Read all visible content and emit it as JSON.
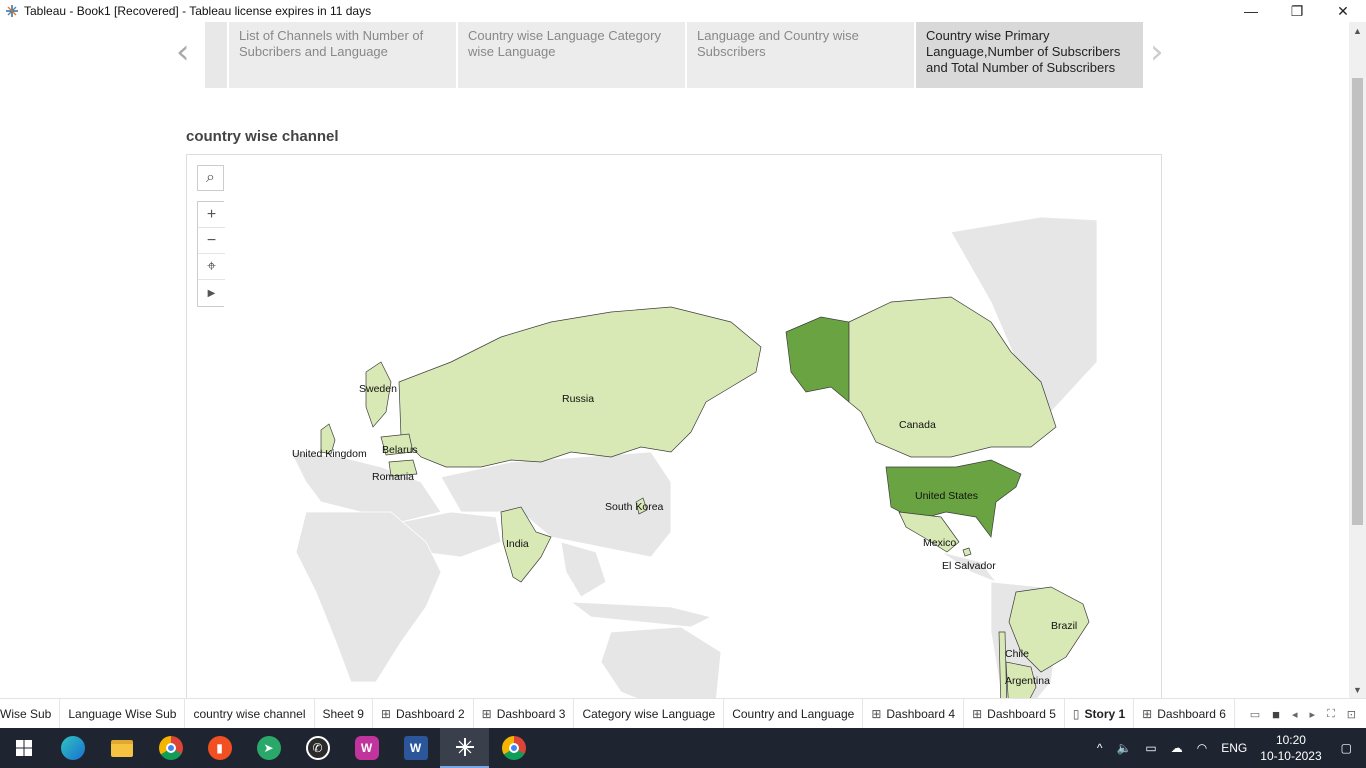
{
  "window": {
    "title": "Tableau - Book1 [Recovered] - Tableau license expires in 11 days",
    "minimize": "—",
    "restore": "❐",
    "close": "✕"
  },
  "story": {
    "prev_arrow": "‹",
    "next_arrow": "›",
    "points": [
      {
        "label": "List of Channels with Number of Subcribers and Language",
        "active": false
      },
      {
        "label": "Country wise Language Category wise Language",
        "active": false
      },
      {
        "label": "Language and Country wise Subscribers",
        "active": false
      },
      {
        "label": "Country wise Primary Language,Number of Subscribers and Total Number of Subscribers",
        "active": true
      }
    ]
  },
  "sheet": {
    "title": "country wise  channel"
  },
  "map_tools": {
    "search": "⌕",
    "zoom_in": "+",
    "zoom_out": "−",
    "pin": "⌖",
    "expand": "▶"
  },
  "map": {
    "colors": {
      "light": "#d9e9b5",
      "dark": "#6aa341",
      "base": "#e6e6e6",
      "border": "#3d3d3d"
    },
    "countries": [
      {
        "name": "Sweden",
        "level": "light"
      },
      {
        "name": "Russia",
        "level": "light"
      },
      {
        "name": "Belarus",
        "level": "light"
      },
      {
        "name": "United Kingdom",
        "level": "light"
      },
      {
        "name": "Romania",
        "level": "light"
      },
      {
        "name": "South Korea",
        "level": "light"
      },
      {
        "name": "India",
        "level": "light"
      },
      {
        "name": "Canada",
        "level": "light"
      },
      {
        "name": "United States",
        "level": "dark"
      },
      {
        "name": "Mexico",
        "level": "light"
      },
      {
        "name": "El Salvador",
        "level": "light"
      },
      {
        "name": "Brazil",
        "level": "light"
      },
      {
        "name": "Chile",
        "level": "light"
      },
      {
        "name": "Argentina",
        "level": "light"
      }
    ]
  },
  "sheet_tabs": [
    {
      "label": "Wise Sub",
      "icon": "",
      "active": false
    },
    {
      "label": "Language Wise Sub",
      "icon": "",
      "active": false
    },
    {
      "label": "country wise  channel",
      "icon": "",
      "active": false
    },
    {
      "label": "Sheet 9",
      "icon": "",
      "active": false
    },
    {
      "label": "Dashboard 2",
      "icon": "⊞",
      "active": false
    },
    {
      "label": "Dashboard 3",
      "icon": "⊞",
      "active": false
    },
    {
      "label": "Category wise Language",
      "icon": "",
      "active": false
    },
    {
      "label": "Country and Language",
      "icon": "",
      "active": false
    },
    {
      "label": "Dashboard 4",
      "icon": "⊞",
      "active": false
    },
    {
      "label": "Dashboard 5",
      "icon": "⊞",
      "active": false
    },
    {
      "label": "Story 1",
      "icon": "▯",
      "active": true
    },
    {
      "label": "Dashboard 6",
      "icon": "⊞",
      "active": false
    }
  ],
  "taskbar": {
    "language": "ENG",
    "time": "10:20",
    "date": "10-10-2023"
  }
}
